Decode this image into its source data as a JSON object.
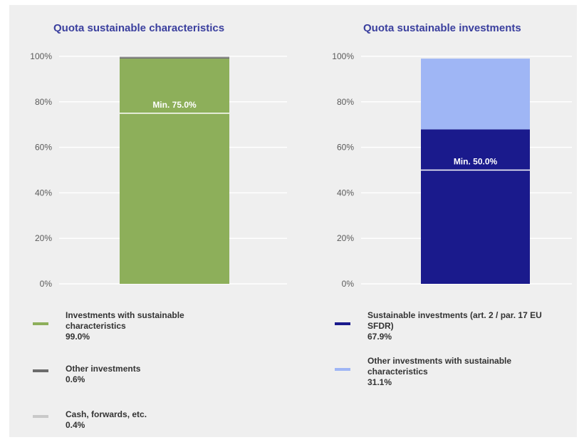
{
  "chart_data": [
    {
      "type": "bar",
      "stacked": true,
      "title": "Quota sustainable characteristics",
      "categories": [
        ""
      ],
      "ylim": [
        0,
        100
      ],
      "yticks": [
        "0%",
        "20%",
        "40%",
        "60%",
        "80%",
        "100%"
      ],
      "grid": true,
      "series": [
        {
          "name": "Investments with sustainable characteristics",
          "value_label": "99.0%",
          "values": [
            99.0
          ],
          "color": "#8daf5a"
        },
        {
          "name": "Other investments",
          "value_label": "0.6%",
          "values": [
            0.6
          ],
          "color": "#6b6b6b"
        },
        {
          "name": "Cash, forwards, etc.",
          "value_label": "0.4%",
          "values": [
            0.4
          ],
          "color": "#c9c9c9"
        }
      ],
      "threshold": {
        "value": 75.0,
        "label": "Min. 75.0%"
      },
      "legend": "bottom"
    },
    {
      "type": "bar",
      "stacked": true,
      "title": "Quota sustainable investments",
      "categories": [
        ""
      ],
      "ylim": [
        0,
        100
      ],
      "yticks": [
        "0%",
        "20%",
        "40%",
        "60%",
        "80%",
        "100%"
      ],
      "grid": true,
      "series": [
        {
          "name": "Sustainable investments (art. 2 / par. 17 EU SFDR)",
          "value_label": "67.9%",
          "values": [
            67.9
          ],
          "color": "#1a1a8c"
        },
        {
          "name": "Other investments with sustainable characteristics",
          "value_label": "31.1%",
          "values": [
            31.1
          ],
          "color": "#9fb6f5"
        }
      ],
      "threshold": {
        "value": 50.0,
        "label": "Min. 50.0%"
      },
      "legend": "bottom"
    }
  ]
}
